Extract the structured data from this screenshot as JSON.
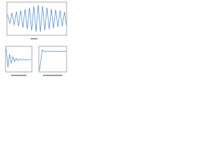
{
  "chart_data": [
    {
      "type": "line",
      "color": "#3f7fd0",
      "x": [
        0,
        1,
        2,
        3,
        4,
        5,
        6,
        7,
        8,
        9,
        10,
        11,
        12,
        13,
        14,
        15,
        16,
        17,
        18,
        19,
        20,
        21,
        22,
        23,
        24,
        25,
        26,
        27
      ],
      "values": [
        0.3,
        -0.35,
        0.4,
        -0.45,
        0.5,
        -0.55,
        0.6,
        -0.65,
        0.7,
        -0.75,
        0.8,
        -0.85,
        0.9,
        -0.95,
        1,
        -0.95,
        0.9,
        -0.85,
        0.8,
        -0.75,
        0.7,
        -0.7,
        0.65,
        -0.6,
        0.6,
        -0.55,
        0.5,
        -0.5
      ],
      "xlim": [
        0,
        27
      ],
      "ylim": [
        -1.1,
        1.1
      ]
    },
    {
      "type": "line",
      "color": "#3f7fd0",
      "x": [
        0,
        1,
        2,
        3,
        4,
        5,
        6,
        7,
        8,
        9,
        10,
        11,
        12,
        13,
        14,
        15
      ],
      "values": [
        1,
        -0.7,
        0.5,
        -0.35,
        0.25,
        -0.18,
        0.12,
        -0.08,
        0.06,
        -0.04,
        0.03,
        -0.02,
        0.01,
        0,
        0,
        0
      ],
      "xlim": [
        0,
        15
      ],
      "ylim": [
        -1,
        1.1
      ]
    },
    {
      "type": "line",
      "color": "#3f7fd0",
      "x": [
        0,
        1,
        2,
        3,
        4,
        5,
        6,
        7,
        8,
        9,
        10
      ],
      "values": [
        0,
        0.9,
        0.82,
        0.85,
        0.84,
        0.84,
        0.84,
        0.84,
        0.84,
        0.84,
        0.84
      ],
      "xlim": [
        0,
        10
      ],
      "ylim": [
        0,
        1
      ]
    }
  ]
}
